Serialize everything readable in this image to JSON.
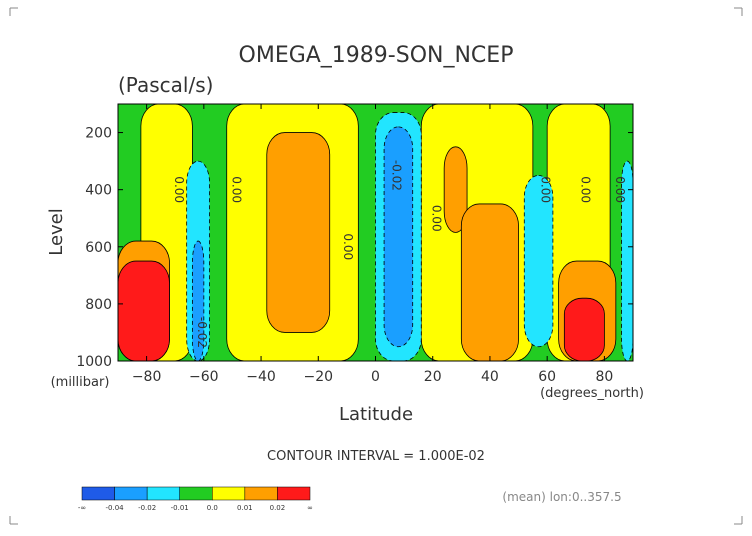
{
  "title": "OMEGA_1989-SON_NCEP",
  "subtitle": "(Pascal/s)",
  "contour_note": "CONTOUR INTERVAL = 1.000E-02",
  "footer_note": "(mean) lon:0..357.5",
  "colors": {
    "neg_strong": "#1f5be8",
    "neg_mid": "#1a9fff",
    "neg_weak": "#22e5ff",
    "neutral": "#22cc22",
    "pos_weak": "#ffff00",
    "pos_mid": "#ff9f00",
    "pos_strong": "#ff1a1a"
  },
  "colorbar": {
    "labels": [
      "-∞",
      "-0.04",
      "-0.02",
      "-0.01",
      "0.0",
      "0.01",
      "0.02",
      "∞"
    ]
  },
  "chart_data": {
    "type": "heatmap",
    "title": "OMEGA_1989-SON_NCEP",
    "subtitle": "(Pascal/s)",
    "xlabel": "Latitude",
    "xunit": "(degrees_north)",
    "ylabel": "Level",
    "yunit": "(millibar)",
    "xlim": [
      -90,
      90
    ],
    "ylim": [
      1000,
      100
    ],
    "xticks": [
      -80,
      -60,
      -40,
      -20,
      0,
      20,
      40,
      60,
      80
    ],
    "yticks": [
      200,
      400,
      600,
      800,
      1000
    ],
    "contour_labels": [
      {
        "text": "0.00",
        "lat": -70,
        "lev": 400
      },
      {
        "text": "0.00",
        "lat": -50,
        "lev": 400
      },
      {
        "text": "0.00",
        "lat": -11,
        "lev": 600
      },
      {
        "text": "-0.02",
        "lat": 6,
        "lev": 350
      },
      {
        "text": "0.00",
        "lat": 20,
        "lev": 500
      },
      {
        "text": "0.00",
        "lat": 58,
        "lev": 400
      },
      {
        "text": "0.00",
        "lat": 72,
        "lev": 400
      },
      {
        "text": "0.00",
        "lat": 84,
        "lev": 400
      },
      {
        "text": "-0.02",
        "lat": -62,
        "lev": 900
      }
    ],
    "regions": [
      {
        "value": "0.0 to 0.01",
        "class": "pos_weak",
        "lat": [
          -82,
          -64
        ],
        "lev": [
          100,
          1000
        ]
      },
      {
        "value": "0.0 to 0.01",
        "class": "pos_weak",
        "lat": [
          -52,
          -6
        ],
        "lev": [
          100,
          1000
        ]
      },
      {
        "value": "0.0 to 0.01",
        "class": "pos_weak",
        "lat": [
          16,
          55
        ],
        "lev": [
          100,
          1000
        ]
      },
      {
        "value": "0.0 to 0.01",
        "class": "pos_weak",
        "lat": [
          60,
          82
        ],
        "lev": [
          100,
          1000
        ]
      },
      {
        "value": "0.01 to 0.02",
        "class": "pos_mid",
        "lat": [
          -38,
          -16
        ],
        "lev": [
          200,
          900
        ]
      },
      {
        "value": "0.01 to 0.02",
        "class": "pos_mid",
        "lat": [
          24,
          32
        ],
        "lev": [
          250,
          550
        ]
      },
      {
        "value": "0.01 to 0.02",
        "class": "pos_mid",
        "lat": [
          30,
          50
        ],
        "lev": [
          450,
          1000
        ]
      },
      {
        "value": "0.01 to 0.02",
        "class": "pos_mid",
        "lat": [
          -90,
          -72
        ],
        "lev": [
          580,
          1000
        ]
      },
      {
        "value": "0.01 to 0.02",
        "class": "pos_mid",
        "lat": [
          64,
          84
        ],
        "lev": [
          650,
          1000
        ]
      },
      {
        "value": "> 0.02",
        "class": "pos_strong",
        "lat": [
          -90,
          -72
        ],
        "lev": [
          650,
          1000
        ]
      },
      {
        "value": "> 0.02",
        "class": "pos_strong",
        "lat": [
          66,
          80
        ],
        "lev": [
          780,
          1000
        ]
      },
      {
        "value": "-0.01 to 0.0",
        "class": "neg_weak",
        "lat": [
          -66,
          -58
        ],
        "lev": [
          300,
          1000
        ]
      },
      {
        "value": "-0.01 to 0.0",
        "class": "neg_weak",
        "lat": [
          0,
          16
        ],
        "lev": [
          130,
          1000
        ]
      },
      {
        "value": "-0.01 to 0.0",
        "class": "neg_weak",
        "lat": [
          52,
          62
        ],
        "lev": [
          350,
          950
        ]
      },
      {
        "value": "-0.01 to 0.0",
        "class": "neg_weak",
        "lat": [
          86,
          90
        ],
        "lev": [
          300,
          1000
        ]
      },
      {
        "value": "-0.02 to -0.01",
        "class": "neg_mid",
        "lat": [
          -64,
          -60
        ],
        "lev": [
          580,
          1000
        ]
      },
      {
        "value": "-0.02 to -0.01",
        "class": "neg_mid",
        "lat": [
          3,
          13
        ],
        "lev": [
          180,
          950
        ]
      }
    ]
  }
}
